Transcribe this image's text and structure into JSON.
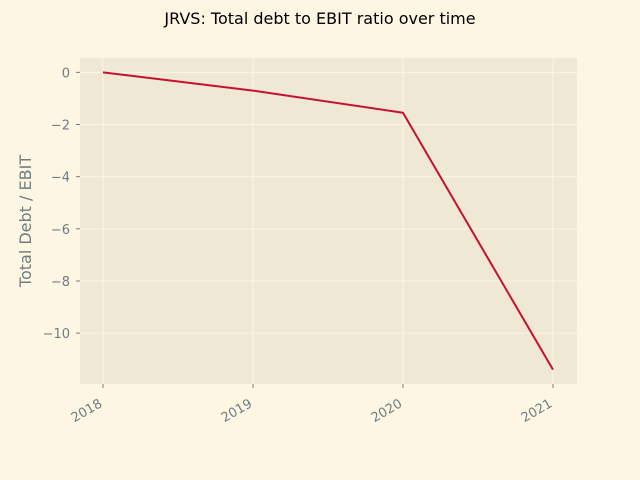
{
  "chart_data": {
    "type": "line",
    "title": "JRVS: Total debt to EBIT ratio over time",
    "xlabel": "",
    "ylabel": "Total Debt / EBIT",
    "categories": [
      "2018",
      "2019",
      "2020",
      "2021"
    ],
    "series": [
      {
        "values": [
          0.0,
          -0.7,
          -1.55,
          -11.4
        ],
        "color": "#c8102e"
      }
    ],
    "ylim": [
      -11.95,
      0.55
    ],
    "yticks": [
      0,
      -2,
      -4,
      -6,
      -8,
      -10
    ],
    "ytick_labels": [
      "0",
      "−2",
      "−4",
      "−6",
      "−8",
      "−10"
    ],
    "grid": true,
    "colors": {
      "figure_background": "#fdf6e3",
      "plot_background": "#eee8d5",
      "grid": "#fdf6e3",
      "tick_text": "#6f7d80"
    }
  }
}
